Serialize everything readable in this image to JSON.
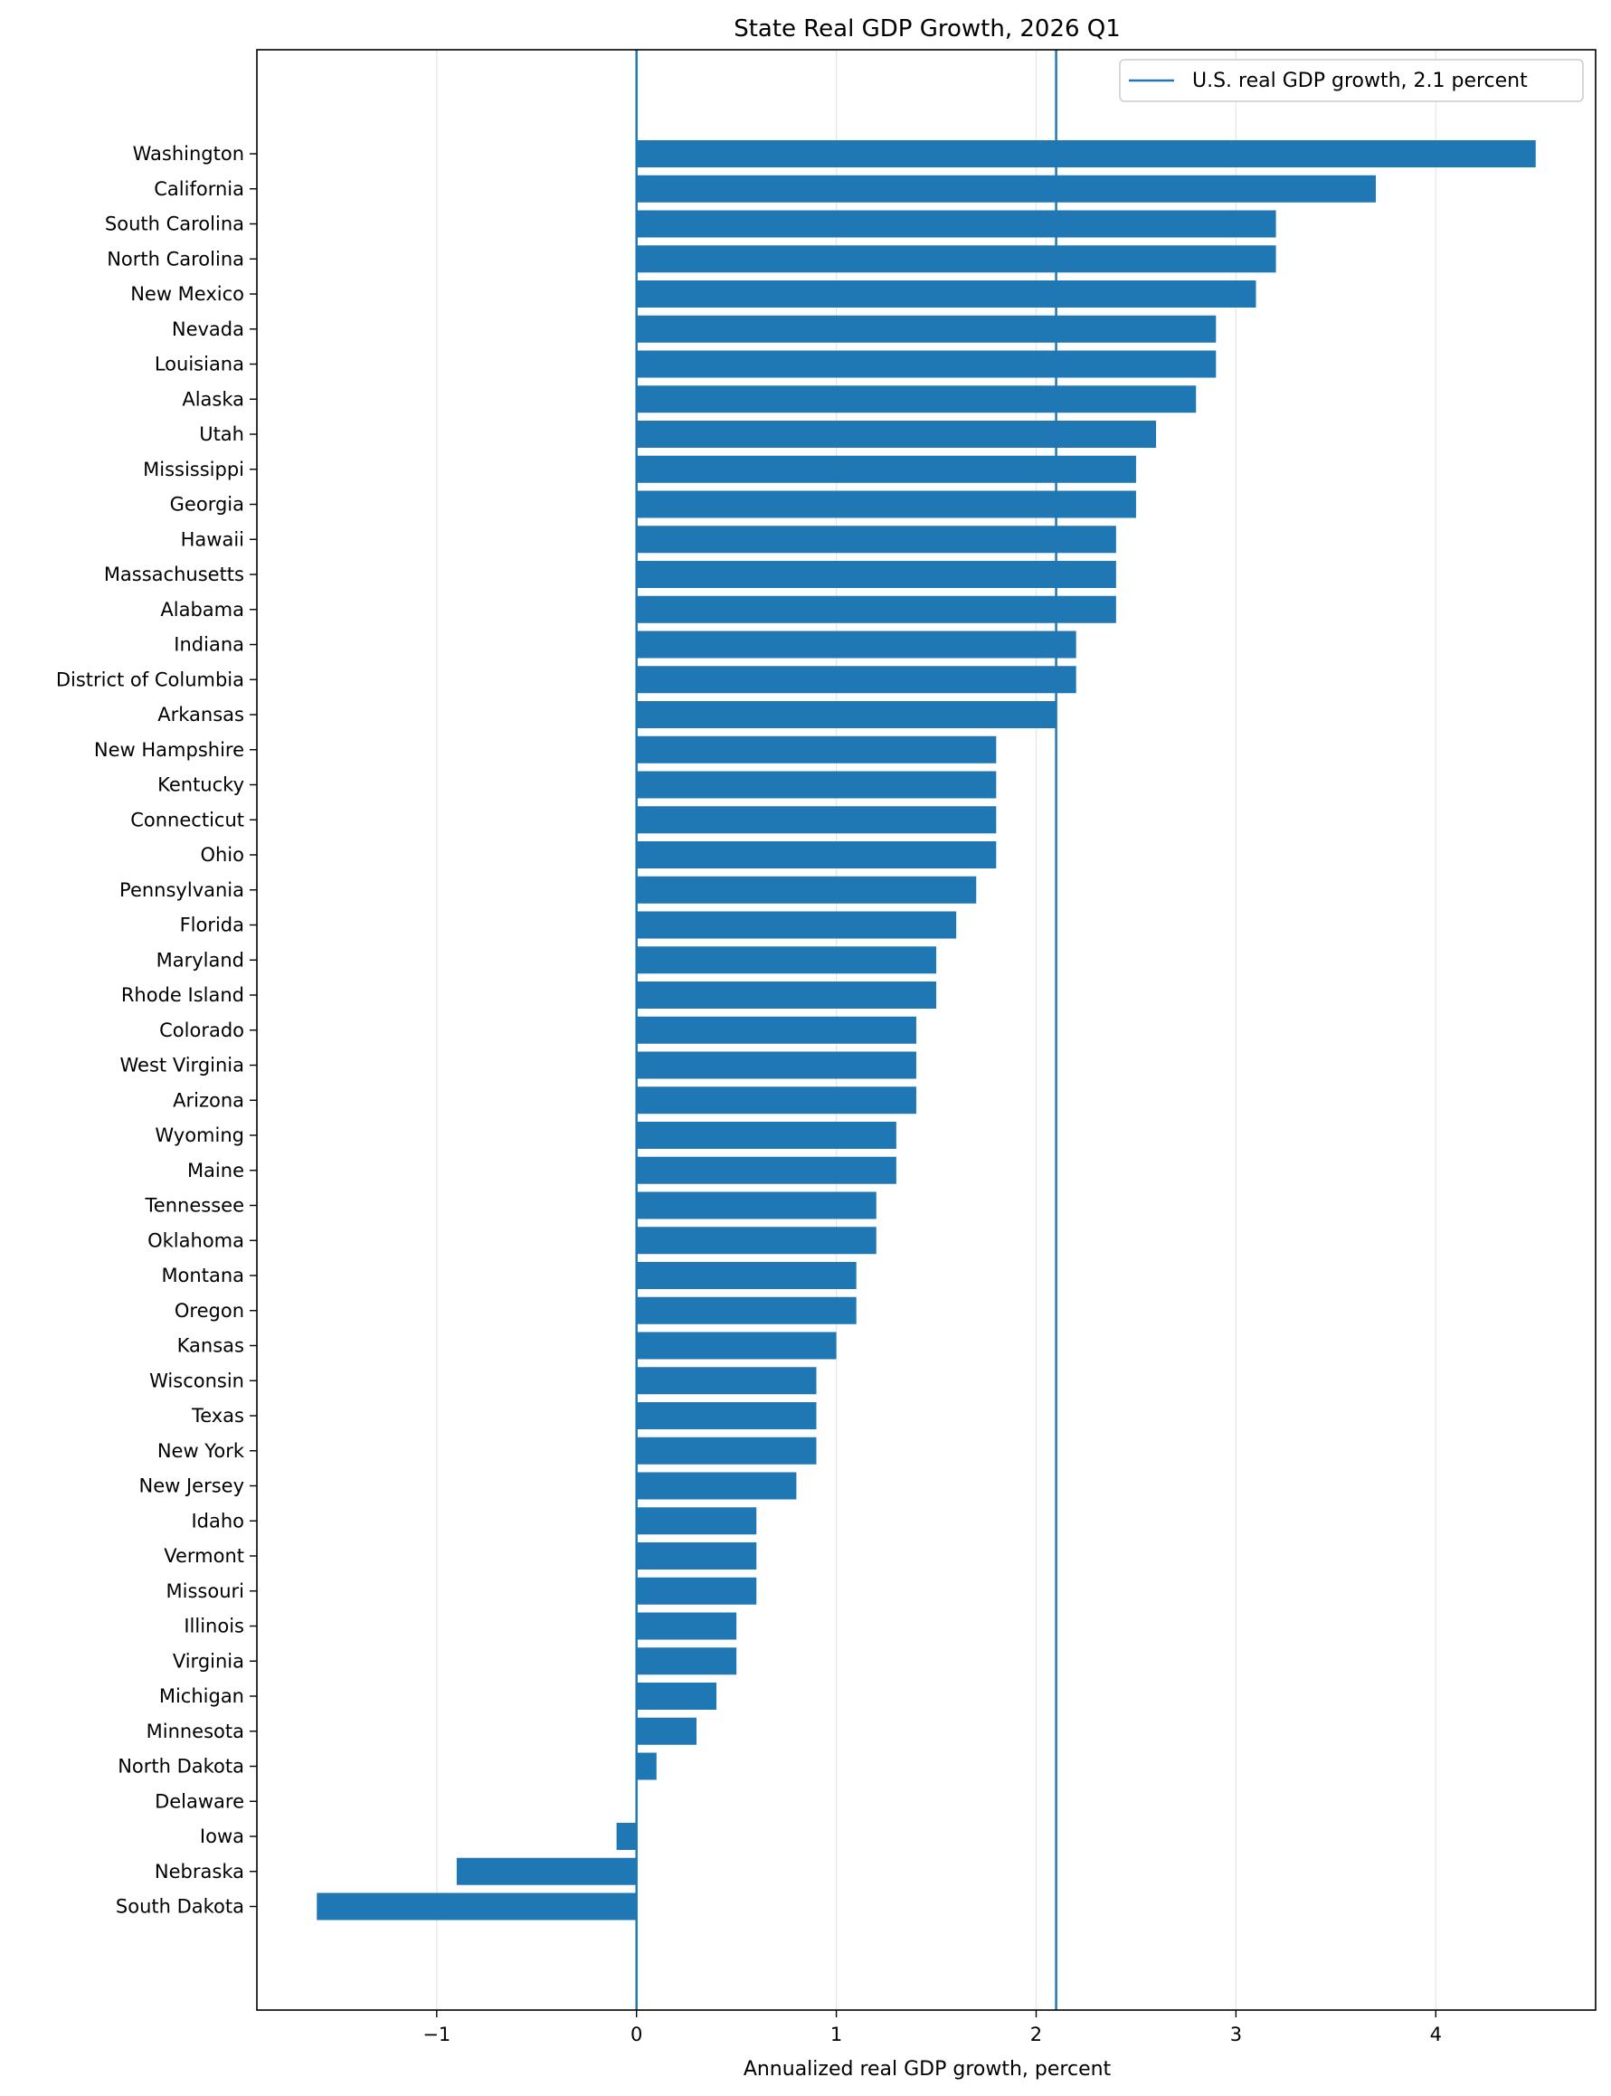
{
  "chart_data": {
    "type": "bar",
    "orientation": "horizontal",
    "title": "State Real GDP Growth, 2026 Q1",
    "xlabel": "Annualized real GDP growth, percent",
    "ylabel": "",
    "xlim": [
      -1.9,
      4.8
    ],
    "xticks": [
      -1,
      0,
      1,
      2,
      3,
      4
    ],
    "xtick_labels": [
      "−1",
      "0",
      "1",
      "2",
      "3",
      "4"
    ],
    "grid": "vertical",
    "legend_position": "top-right",
    "bar_color": "#1f77b4",
    "reference_lines": [
      {
        "value": 0,
        "label": "",
        "color": "#1f77b4"
      },
      {
        "value": 2.1,
        "label": "U.S. real GDP growth, 2.1 percent",
        "color": "#1f77b4"
      }
    ],
    "categories": [
      "Washington",
      "California",
      "South Carolina",
      "North Carolina",
      "New Mexico",
      "Nevada",
      "Louisiana",
      "Alaska",
      "Utah",
      "Mississippi",
      "Georgia",
      "Hawaii",
      "Massachusetts",
      "Alabama",
      "Indiana",
      "District of Columbia",
      "Arkansas",
      "New Hampshire",
      "Kentucky",
      "Connecticut",
      "Ohio",
      "Pennsylvania",
      "Florida",
      "Maryland",
      "Rhode Island",
      "Colorado",
      "West Virginia",
      "Arizona",
      "Wyoming",
      "Maine",
      "Tennessee",
      "Oklahoma",
      "Montana",
      "Oregon",
      "Kansas",
      "Wisconsin",
      "Texas",
      "New York",
      "New Jersey",
      "Idaho",
      "Vermont",
      "Missouri",
      "Illinois",
      "Virginia",
      "Michigan",
      "Minnesota",
      "North Dakota",
      "Delaware",
      "Iowa",
      "Nebraska",
      "South Dakota"
    ],
    "values": [
      4.5,
      3.7,
      3.2,
      3.2,
      3.1,
      2.9,
      2.9,
      2.8,
      2.6,
      2.5,
      2.5,
      2.4,
      2.4,
      2.4,
      2.2,
      2.2,
      2.1,
      1.8,
      1.8,
      1.8,
      1.8,
      1.7,
      1.6,
      1.5,
      1.5,
      1.4,
      1.4,
      1.4,
      1.3,
      1.3,
      1.2,
      1.2,
      1.1,
      1.1,
      1.0,
      0.9,
      0.9,
      0.9,
      0.8,
      0.6,
      0.6,
      0.6,
      0.5,
      0.5,
      0.4,
      0.3,
      0.1,
      0.0,
      -0.1,
      -0.9,
      -1.6
    ]
  }
}
